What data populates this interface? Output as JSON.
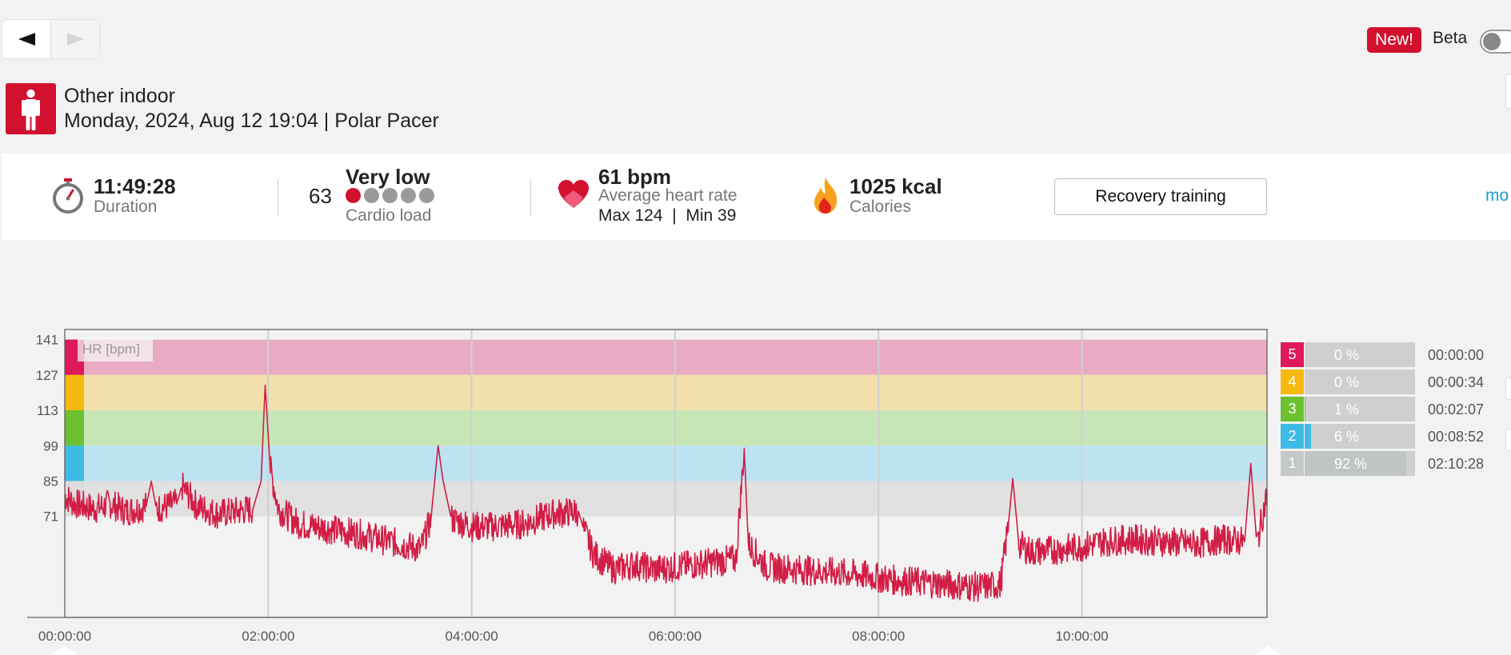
{
  "nav": {
    "back_icon": "triangle-left-icon",
    "forward_icon": "triangle-right-icon"
  },
  "header": {
    "badge": "New!",
    "beta_label": "Beta",
    "beta_enabled": false
  },
  "session": {
    "sport_icon": "person-standing-icon",
    "sport": "Other indoor",
    "meta": "Monday, 2024, Aug 12 19:04 | Polar Pacer"
  },
  "summary": {
    "duration_value": "11:49:28",
    "duration_label": "Duration",
    "cardio_value": "63",
    "cardio_level": "Very low",
    "cardio_label": "Cardio load",
    "cardio_dots_active": 1,
    "cardio_dots_total": 5,
    "hr_value": "61 bpm",
    "hr_label": "Average heart rate",
    "hr_max_min": "Max 124  |  Min 39",
    "calories_value": "1025 kcal",
    "calories_label": "Calories",
    "benefit_button": "Recovery training",
    "more_link": "mo"
  },
  "chart_data": {
    "type": "line",
    "title": "",
    "xlabel": "",
    "ylabel": "HR [bpm]",
    "y_ticks": [
      141,
      127,
      113,
      99,
      85,
      71
    ],
    "ylim": [
      31,
      145
    ],
    "x_ticks": [
      "00:00:00",
      "02:00:00",
      "04:00:00",
      "06:00:00",
      "08:00:00",
      "10:00:00"
    ],
    "xlim_hours": [
      0,
      11.82
    ],
    "zones": [
      {
        "zone": 5,
        "from": 127,
        "to": 141,
        "color": "#e9abc4",
        "marker": "#de1a5a"
      },
      {
        "zone": 4,
        "from": 113,
        "to": 127,
        "color": "#f4e0ac",
        "marker": "#f7b90d"
      },
      {
        "zone": 3,
        "from": 99,
        "to": 113,
        "color": "#c7e6b6",
        "marker": "#6bc12f"
      },
      {
        "zone": 2,
        "from": 85,
        "to": 99,
        "color": "#bde3f2",
        "marker": "#3dbbe6"
      },
      {
        "zone": 1,
        "from": 71,
        "to": 85,
        "color": "#e1e1e1",
        "marker": "#dcdcdc"
      }
    ],
    "series": [
      {
        "color": "#d21d45",
        "points": [
          [
            0.0,
            79
          ],
          [
            0.1,
            76
          ],
          [
            0.2,
            75
          ],
          [
            0.3,
            74
          ],
          [
            0.45,
            76
          ],
          [
            0.6,
            73
          ],
          [
            0.8,
            75
          ],
          [
            0.85,
            85
          ],
          [
            0.9,
            74
          ],
          [
            1.1,
            76
          ],
          [
            1.15,
            83
          ],
          [
            1.3,
            75
          ],
          [
            1.5,
            72
          ],
          [
            1.7,
            73
          ],
          [
            1.85,
            74
          ],
          [
            1.93,
            85
          ],
          [
            1.97,
            123
          ],
          [
            2.02,
            90
          ],
          [
            2.1,
            74
          ],
          [
            2.3,
            68
          ],
          [
            2.6,
            66
          ],
          [
            2.9,
            64
          ],
          [
            3.2,
            61
          ],
          [
            3.4,
            59
          ],
          [
            3.5,
            58
          ],
          [
            3.6,
            70
          ],
          [
            3.67,
            99
          ],
          [
            3.72,
            85
          ],
          [
            3.8,
            70
          ],
          [
            4.0,
            67
          ],
          [
            4.2,
            67
          ],
          [
            4.5,
            68
          ],
          [
            4.8,
            72
          ],
          [
            5.05,
            73
          ],
          [
            5.1,
            66
          ],
          [
            5.2,
            56
          ],
          [
            5.4,
            50
          ],
          [
            5.6,
            52
          ],
          [
            5.8,
            50
          ],
          [
            6.0,
            51
          ],
          [
            6.2,
            52
          ],
          [
            6.4,
            53
          ],
          [
            6.6,
            54
          ],
          [
            6.68,
            98
          ],
          [
            6.72,
            60
          ],
          [
            6.9,
            51
          ],
          [
            7.2,
            50
          ],
          [
            7.5,
            49
          ],
          [
            7.8,
            48
          ],
          [
            8.1,
            46
          ],
          [
            8.4,
            45
          ],
          [
            8.7,
            44
          ],
          [
            9.0,
            43
          ],
          [
            9.2,
            44
          ],
          [
            9.28,
            69
          ],
          [
            9.32,
            86
          ],
          [
            9.38,
            60
          ],
          [
            9.5,
            57
          ],
          [
            9.8,
            58
          ],
          [
            10.0,
            59
          ],
          [
            10.2,
            61
          ],
          [
            10.5,
            62
          ],
          [
            10.8,
            61
          ],
          [
            11.1,
            60
          ],
          [
            11.4,
            62
          ],
          [
            11.6,
            61
          ],
          [
            11.66,
            92
          ],
          [
            11.72,
            60
          ],
          [
            11.82,
            80
          ]
        ]
      }
    ]
  },
  "zone_summary": [
    {
      "zone": "5",
      "percent": "0 %",
      "fraction": 0.0,
      "time": "00:00:00",
      "color": "#de1a5a",
      "fill": "#de1a5a"
    },
    {
      "zone": "4",
      "percent": "0 %",
      "fraction": 0.0,
      "time": "00:00:34",
      "color": "#f7b90d",
      "fill": "#f7b90d"
    },
    {
      "zone": "3",
      "percent": "1 %",
      "fraction": 0.01,
      "time": "00:02:07",
      "color": "#6bc12f",
      "fill": "#6bc12f"
    },
    {
      "zone": "2",
      "percent": "6 %",
      "fraction": 0.06,
      "time": "00:08:52",
      "color": "#3dbbe6",
      "fill": "#3dbbe6"
    },
    {
      "zone": "1",
      "percent": "92 %",
      "fraction": 0.92,
      "time": "02:10:28",
      "color": "#c4c8c8",
      "fill": "#bfc4c4"
    }
  ]
}
